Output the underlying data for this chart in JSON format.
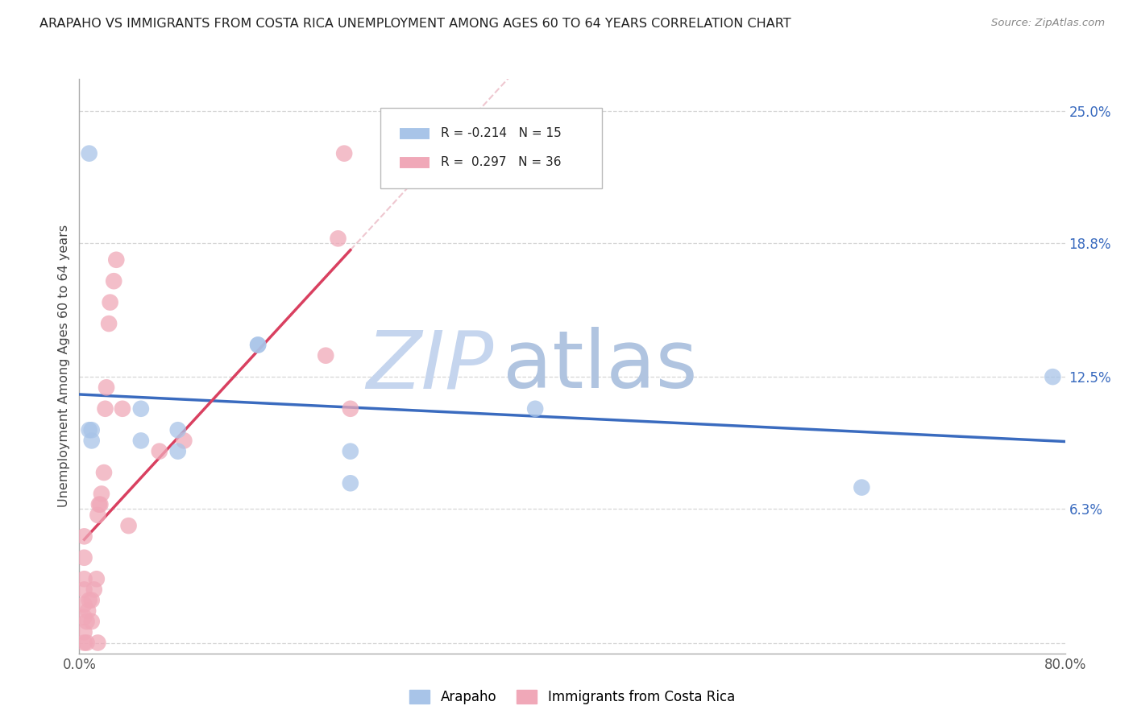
{
  "title": "ARAPAHO VS IMMIGRANTS FROM COSTA RICA UNEMPLOYMENT AMONG AGES 60 TO 64 YEARS CORRELATION CHART",
  "source": "Source: ZipAtlas.com",
  "ylabel": "Unemployment Among Ages 60 to 64 years",
  "xlim": [
    0.0,
    0.8
  ],
  "ylim": [
    -0.005,
    0.265
  ],
  "x_ticks": [
    0.0,
    0.2,
    0.4,
    0.6,
    0.8
  ],
  "x_tick_labels": [
    "0.0%",
    "",
    "",
    "",
    "80.0%"
  ],
  "y_ticks_right": [
    0.25,
    0.188,
    0.125,
    0.063,
    0.0
  ],
  "y_tick_labels_right": [
    "25.0%",
    "18.8%",
    "12.5%",
    "6.3%",
    ""
  ],
  "arapaho_color": "#a8c4e8",
  "costarica_color": "#f0a8b8",
  "arapaho_line_color": "#3a6bbf",
  "costarica_line_color": "#d94060",
  "watermark_zip_color": "#c8d8f0",
  "watermark_atlas_color": "#b8ccec",
  "arapaho_x": [
    0.008,
    0.008,
    0.01,
    0.01,
    0.05,
    0.05,
    0.08,
    0.08,
    0.145,
    0.145,
    0.22,
    0.22,
    0.37,
    0.635,
    0.79
  ],
  "arapaho_y": [
    0.23,
    0.1,
    0.095,
    0.1,
    0.11,
    0.095,
    0.1,
    0.09,
    0.14,
    0.14,
    0.075,
    0.09,
    0.11,
    0.073,
    0.125
  ],
  "costarica_x": [
    0.004,
    0.004,
    0.004,
    0.004,
    0.004,
    0.004,
    0.004,
    0.004,
    0.006,
    0.006,
    0.007,
    0.008,
    0.01,
    0.01,
    0.012,
    0.014,
    0.015,
    0.015,
    0.016,
    0.017,
    0.018,
    0.02,
    0.021,
    0.022,
    0.024,
    0.025,
    0.028,
    0.03,
    0.035,
    0.04,
    0.065,
    0.085,
    0.2,
    0.21,
    0.215,
    0.22
  ],
  "costarica_y": [
    0.0,
    0.005,
    0.012,
    0.018,
    0.025,
    0.03,
    0.04,
    0.05,
    0.0,
    0.01,
    0.015,
    0.02,
    0.01,
    0.02,
    0.025,
    0.03,
    0.0,
    0.06,
    0.065,
    0.065,
    0.07,
    0.08,
    0.11,
    0.12,
    0.15,
    0.16,
    0.17,
    0.18,
    0.11,
    0.055,
    0.09,
    0.095,
    0.135,
    0.19,
    0.23,
    0.11
  ],
  "legend_R1": "R = -0.214",
  "legend_N1": "N = 15",
  "legend_R2": "R =  0.297",
  "legend_N2": "N = 36"
}
